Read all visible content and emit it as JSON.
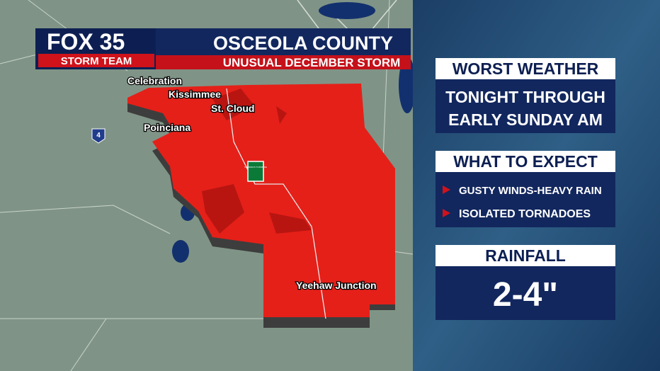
{
  "header": {
    "logo": "FOX 35",
    "brand": "STORM TEAM",
    "title": "OSCEOLA COUNTY",
    "subtitle": "UNUSUAL DECEMBER STORM"
  },
  "map": {
    "places": [
      "Celebration",
      "Kissimmee",
      "St. Cloud",
      "Poinciana",
      "Yeehaw Junction"
    ],
    "interstate": "4",
    "turnpike": "FLORIDA'S TURNPIKE"
  },
  "panels": {
    "worst": {
      "title": "WORST WEATHER",
      "lines": [
        "TONIGHT THROUGH",
        "EARLY SUNDAY AM"
      ]
    },
    "expect": {
      "title": "WHAT TO EXPECT",
      "items": [
        "GUSTY WINDS-HEAVY RAIN",
        "ISOLATED TORNADOES"
      ]
    },
    "rain": {
      "title": "RAINFALL",
      "amount": "2-4\""
    }
  }
}
